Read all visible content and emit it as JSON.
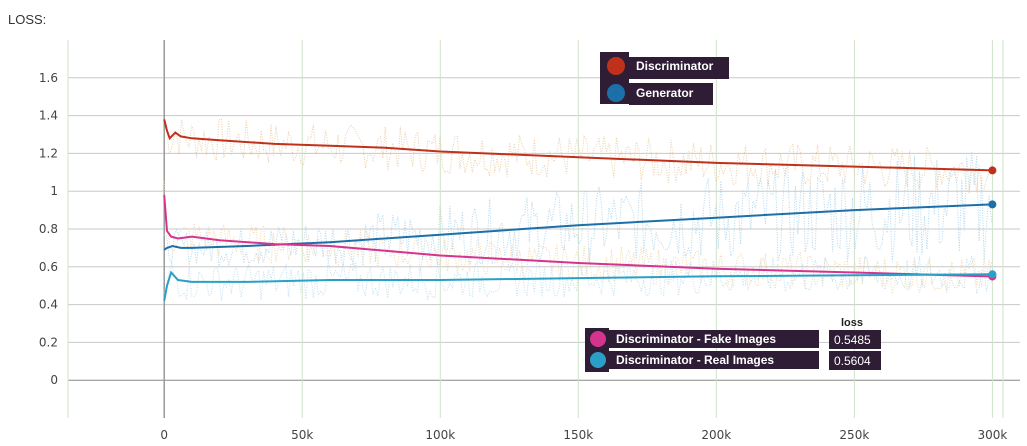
{
  "chart_data": {
    "type": "line",
    "title": "LOSS:",
    "xlabel": "",
    "ylabel": "",
    "xlim": [
      -45000,
      310000
    ],
    "ylim": [
      -0.2,
      1.8
    ],
    "x_ticks": [
      0,
      50000,
      100000,
      150000,
      200000,
      250000,
      300000
    ],
    "x_tick_labels": [
      "0",
      "50k",
      "100k",
      "150k",
      "200k",
      "250k",
      "300k"
    ],
    "y_ticks": [
      0,
      0.2,
      0.4,
      0.6,
      0.8,
      1,
      1.2,
      1.4,
      1.6
    ],
    "y_tick_labels": [
      "0",
      "0.2",
      "0.4",
      "0.6",
      "0.8",
      "1",
      "1.2",
      "1.4",
      "1.6"
    ],
    "grid": true,
    "series": [
      {
        "name": "Discriminator",
        "color": "#c0311c",
        "x": [
          0,
          1000,
          2000,
          4000,
          6000,
          10000,
          20000,
          40000,
          60000,
          80000,
          100000,
          150000,
          200000,
          250000,
          300000
        ],
        "values": [
          1.38,
          1.32,
          1.28,
          1.31,
          1.29,
          1.28,
          1.27,
          1.25,
          1.24,
          1.23,
          1.21,
          1.18,
          1.15,
          1.13,
          1.11
        ]
      },
      {
        "name": "Generator",
        "color": "#1c6fa8",
        "x": [
          0,
          1000,
          3000,
          6000,
          10000,
          30000,
          60000,
          100000,
          150000,
          200000,
          250000,
          300000
        ],
        "values": [
          0.69,
          0.7,
          0.71,
          0.7,
          0.7,
          0.71,
          0.73,
          0.77,
          0.82,
          0.86,
          0.9,
          0.93
        ]
      },
      {
        "name": "Discriminator - Fake Images",
        "color": "#d6338f",
        "x": [
          0,
          1000,
          2500,
          5000,
          10000,
          20000,
          40000,
          60000,
          100000,
          150000,
          200000,
          250000,
          300000
        ],
        "values": [
          0.98,
          0.79,
          0.76,
          0.75,
          0.76,
          0.74,
          0.72,
          0.71,
          0.66,
          0.62,
          0.59,
          0.57,
          0.5485
        ]
      },
      {
        "name": "Discriminator - Real Images",
        "color": "#2aa0c8",
        "x": [
          0,
          1000,
          2500,
          5000,
          10000,
          30000,
          60000,
          100000,
          150000,
          200000,
          250000,
          300000
        ],
        "values": [
          0.42,
          0.5,
          0.57,
          0.53,
          0.52,
          0.52,
          0.53,
          0.53,
          0.54,
          0.55,
          0.555,
          0.5604
        ]
      }
    ],
    "legend_top": [
      "Discriminator",
      "Generator"
    ],
    "legend_bottom": [
      "Discriminator - Fake Images",
      "Discriminator - Real Images"
    ],
    "value_header": "loss",
    "values_display": [
      "0.5485",
      "0.5604"
    ]
  }
}
